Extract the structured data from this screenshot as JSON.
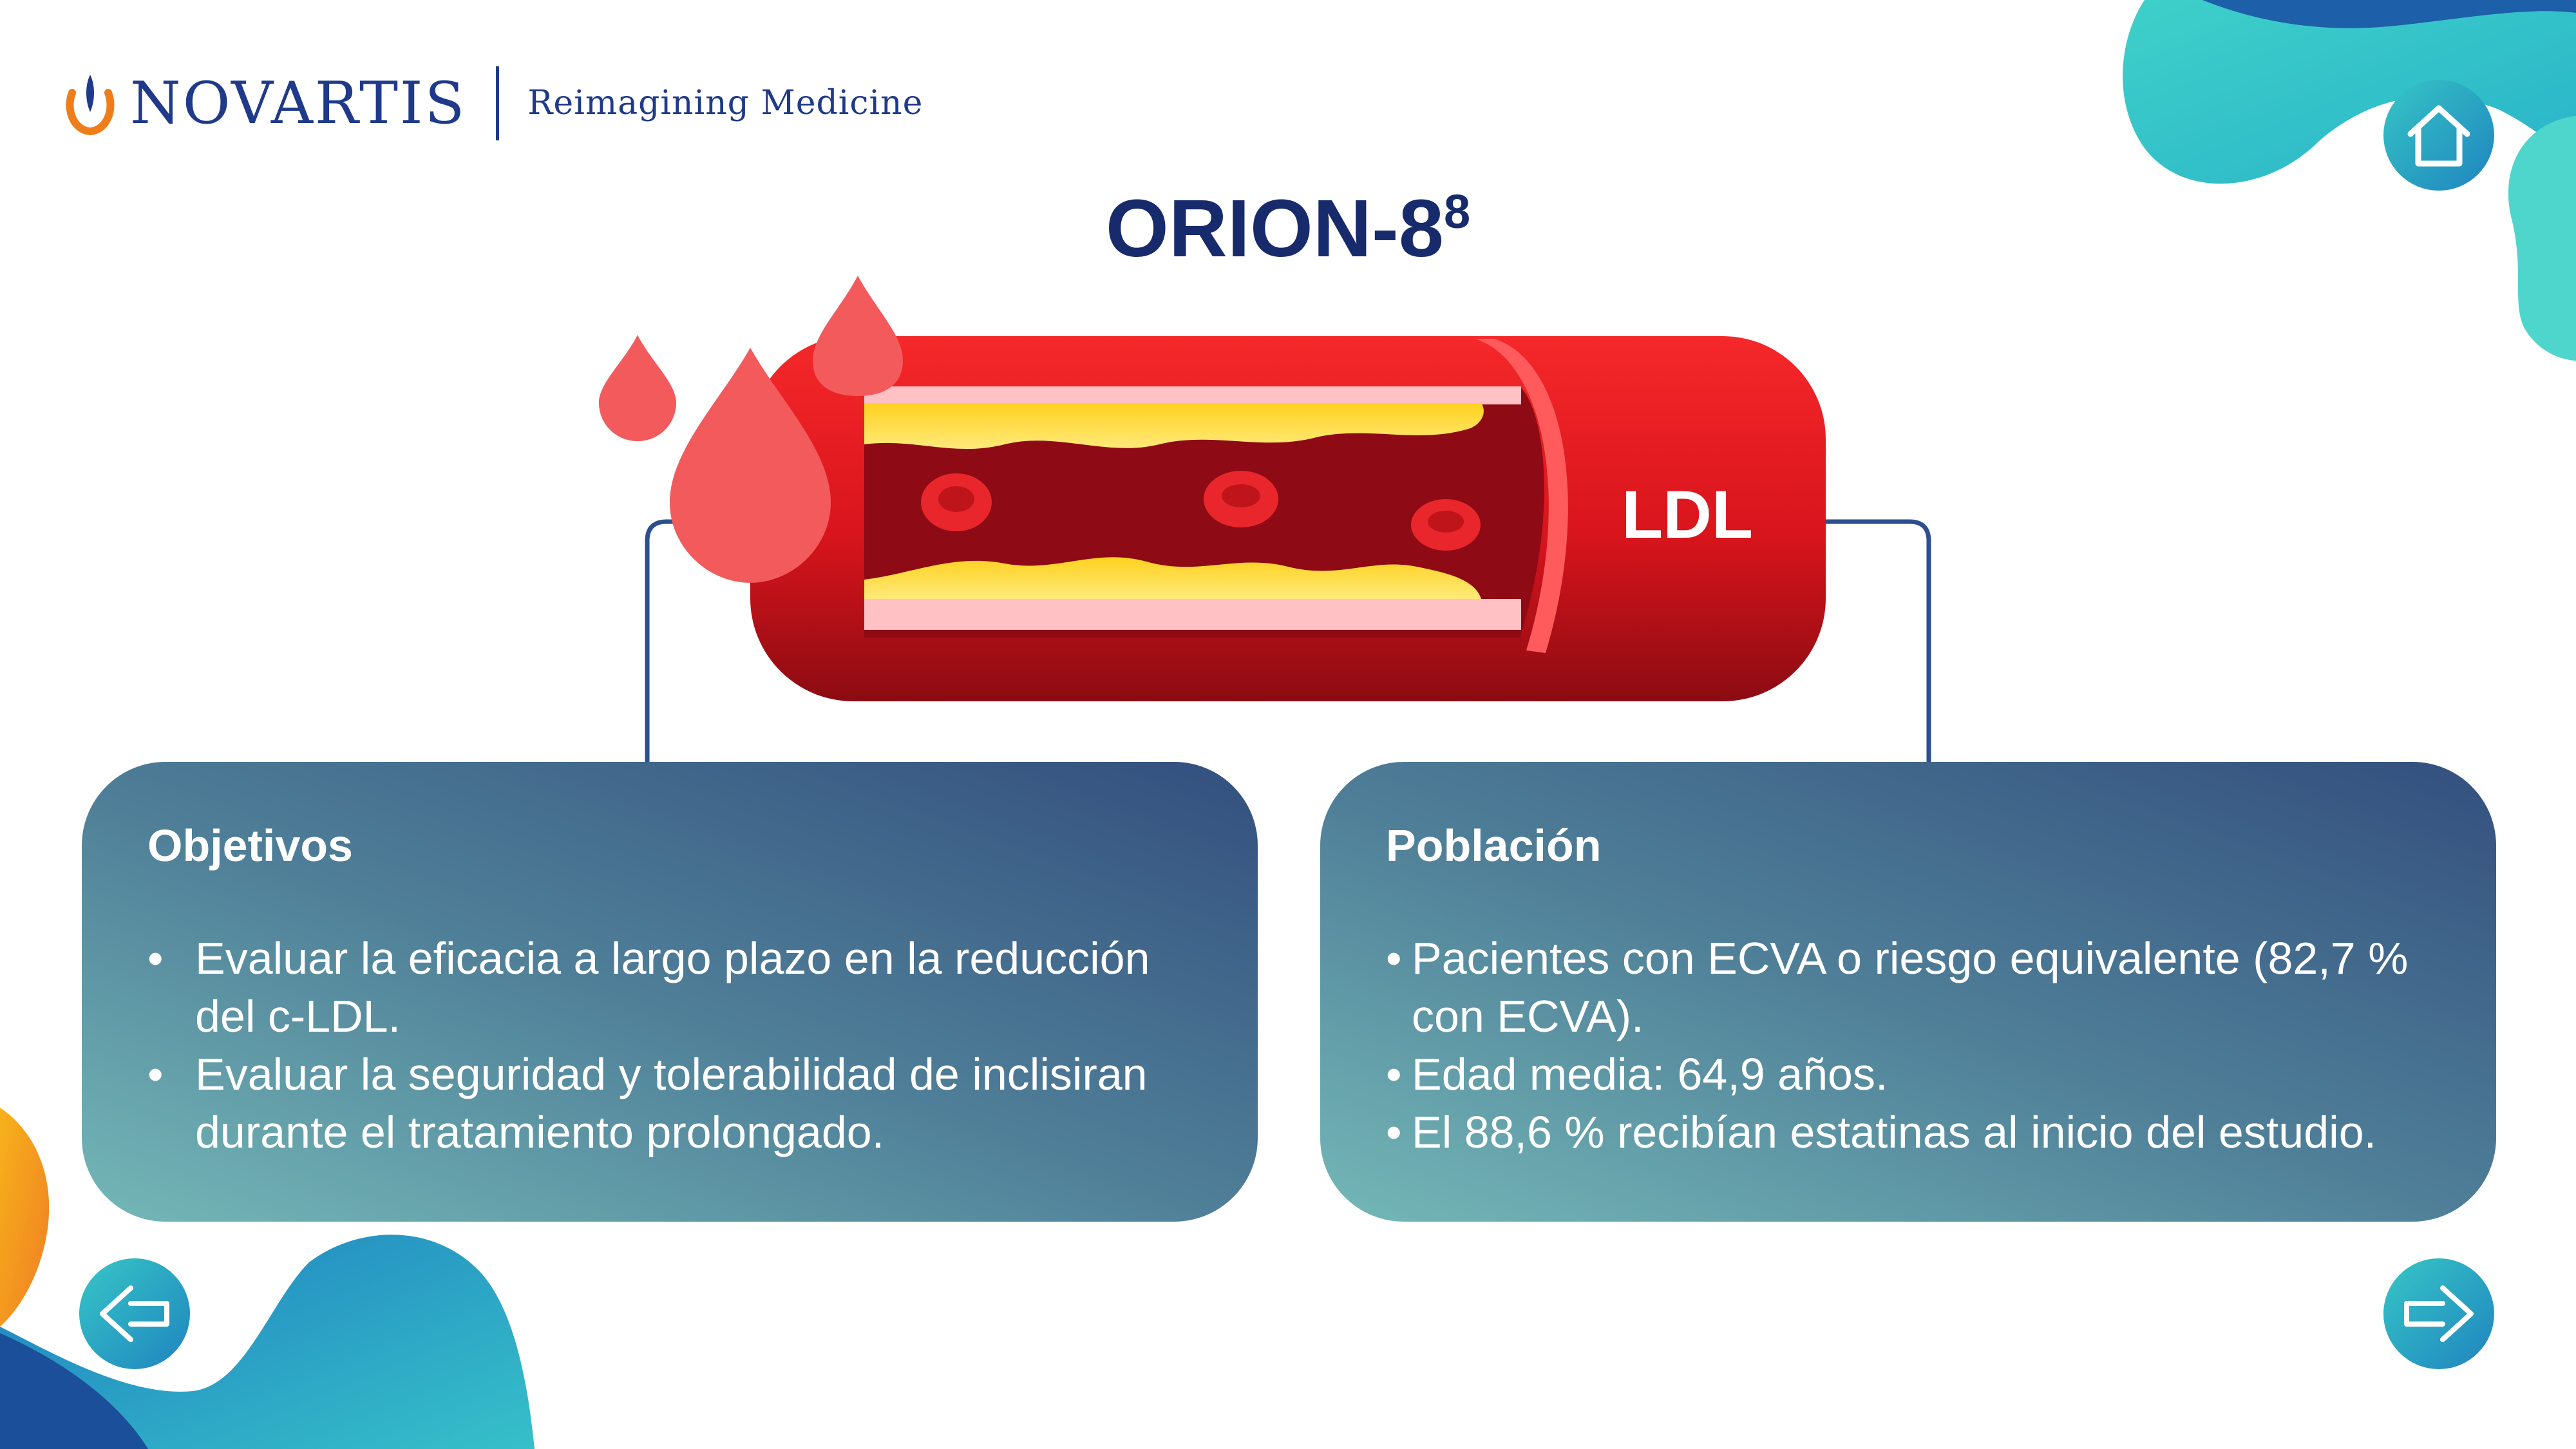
{
  "header": {
    "brand": "NOVARTIS",
    "tagline": "Reimagining Medicine"
  },
  "title": {
    "main": "ORION-8",
    "superscript": "8"
  },
  "illustration": {
    "vessel_label": "LDL"
  },
  "cards": {
    "objectives": {
      "title": "Objetivos",
      "items": [
        "Evaluar la eficacia a largo plazo en la reducción del c-LDL.",
        "Evaluar la seguridad y tolerabilidad de inclisiran durante el tratamiento prolongado."
      ]
    },
    "population": {
      "title": "Población",
      "items": [
        "Pacientes con ECVA o riesgo equivalente (82,7 % con ECVA).",
        "Edad media: 64,9 años.",
        "El 88,6 % recibían estatinas al inicio del estudio."
      ]
    }
  },
  "navigation": {
    "home_icon": "home-icon",
    "back_icon": "arrow-left-icon",
    "next_icon": "arrow-right-icon"
  },
  "colors": {
    "brand_blue": "#1f3a8a",
    "title_navy": "#172a6b",
    "vessel_red": "#e8141c",
    "teal": "#3cc6c4",
    "blue": "#1b6fb8",
    "orange": "#f39a1e"
  }
}
